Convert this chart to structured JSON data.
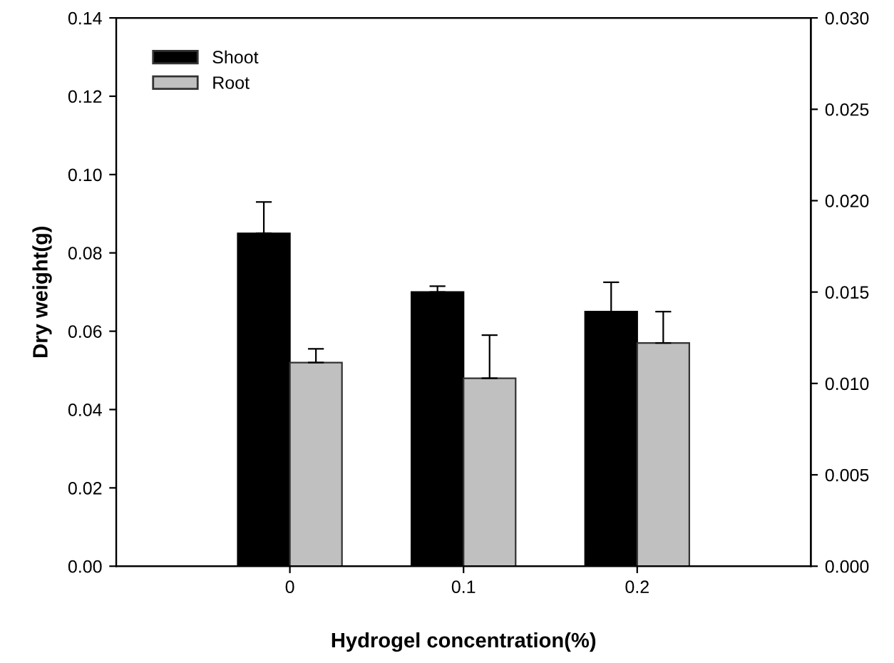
{
  "chart_data": {
    "type": "bar",
    "xlabel": "Hydrogel concentration(%)",
    "ylabel": "Dry weight(g)",
    "categories": [
      "0",
      "0.1",
      "0.2"
    ],
    "series": [
      {
        "name": "Shoot",
        "color": "#000000",
        "values": [
          0.085,
          0.07,
          0.065
        ],
        "errors": [
          [
            0.085,
            0.093
          ],
          [
            0.07,
            0.0715
          ],
          [
            0.065,
            0.0725
          ]
        ]
      },
      {
        "name": "Root",
        "color": "#c0c0c0",
        "values": [
          0.052,
          0.048,
          0.057
        ],
        "errors": [
          [
            0.052,
            0.0555
          ],
          [
            0.048,
            0.059
          ],
          [
            0.057,
            0.065
          ]
        ]
      }
    ],
    "ylim": [
      0,
      0.14
    ],
    "yticks": [
      {
        "value": 0,
        "label": "0.00"
      },
      0.02,
      0.04,
      0.06,
      0.08,
      {
        "value": 0.1,
        "label": "0.10"
      },
      0.12,
      0.14
    ],
    "y2lim": [
      0,
      0.03
    ],
    "y2ticks": [
      {
        "value": 0,
        "label": "0.000"
      },
      0.005,
      {
        "value": 0.01,
        "label": "0.010"
      },
      0.015,
      {
        "value": 0.02,
        "label": "0.020"
      },
      0.025,
      {
        "value": 0.03,
        "label": "0.030"
      }
    ],
    "legend": "top left"
  }
}
